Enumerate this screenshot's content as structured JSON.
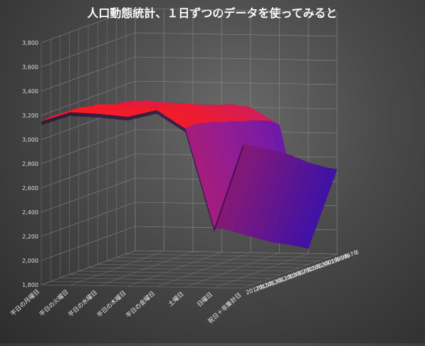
{
  "chart_data": {
    "type": "surface",
    "title": "人口動態統計、１日ずつのデータを使ってみると",
    "colors": {
      "high": "#ff1a1a",
      "mid": "#a020a0",
      "low": "#1010ff"
    },
    "y_axis": {
      "min": 1800,
      "max": 3800,
      "ticks": [
        "1,800",
        "2,000",
        "2,200",
        "2,400",
        "2,600",
        "2,800",
        "3,000",
        "3,200",
        "3,400",
        "3,600",
        "3,800"
      ]
    },
    "categories": [
      "平日の月曜日",
      "平日の火曜日",
      "平日の水曜日",
      "平日の木曜日",
      "平日の金曜日",
      "土曜日",
      "日曜日",
      "祝日＋非集計日"
    ],
    "series": [
      "1997年",
      "1999年",
      "2001年",
      "2003年",
      "2005年",
      "2007年",
      "2009年",
      "2011年",
      "2013年",
      "2015年",
      "2017年"
    ],
    "values": [
      [
        3040,
        3060,
        3070,
        3080,
        3090,
        3100,
        3120,
        3140,
        3150,
        3160,
        3150
      ],
      [
        3020,
        3060,
        3100,
        3110,
        3130,
        3150,
        3180,
        3210,
        3220,
        3240,
        3230
      ],
      [
        3000,
        3050,
        3080,
        3090,
        3110,
        3130,
        3160,
        3200,
        3210,
        3230,
        3220
      ],
      [
        2990,
        3040,
        3070,
        3080,
        3100,
        3120,
        3150,
        3190,
        3200,
        3210,
        3200
      ],
      [
        3000,
        3040,
        3080,
        3100,
        3130,
        3160,
        3190,
        3230,
        3250,
        3270,
        3260
      ],
      [
        2860,
        2920,
        2950,
        2980,
        3000,
        3030,
        3050,
        3080,
        3100,
        3120,
        3110
      ],
      [
        1840,
        1890,
        1930,
        1970,
        2010,
        2060,
        2110,
        2160,
        2210,
        2260,
        2290
      ],
      [
        2500,
        2540,
        2590,
        2640,
        2700,
        2760,
        2810,
        2860,
        2900,
        2950,
        2990
      ]
    ]
  }
}
